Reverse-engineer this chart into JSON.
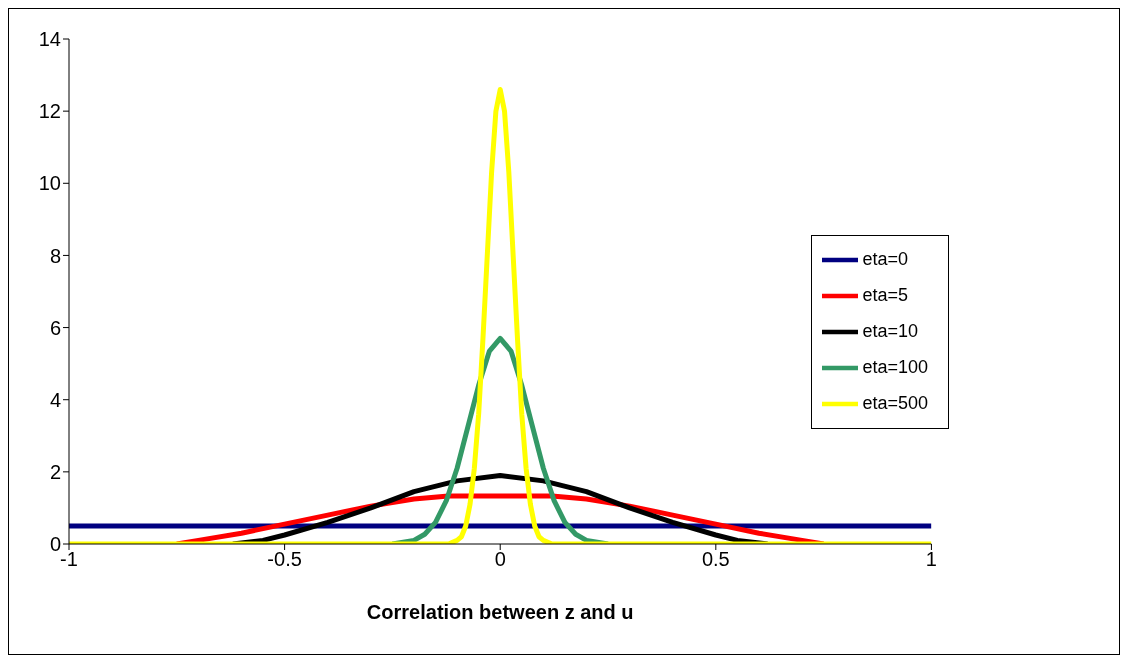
{
  "chart_data": {
    "type": "line",
    "xlabel": "Correlation between z and u",
    "xlim": [
      -1,
      1
    ],
    "xticks": [
      -1,
      -0.5,
      0,
      0.5,
      1
    ],
    "ylim": [
      0,
      14
    ],
    "yticks": [
      0,
      2,
      4,
      6,
      8,
      10,
      12,
      14
    ],
    "grid": false,
    "legend": "right",
    "marker": "none",
    "line_style": "solid",
    "series": [
      {
        "name": "eta=0",
        "color": "#000080",
        "x": [
          -1,
          1
        ],
        "values": [
          0.5,
          0.5
        ]
      },
      {
        "name": "eta=5",
        "color": "#ff0000",
        "x": [
          -0.75,
          -0.7,
          -0.6,
          -0.5,
          -0.4,
          -0.3,
          -0.2,
          -0.12,
          0,
          0.12,
          0.2,
          0.3,
          0.4,
          0.5,
          0.6,
          0.7,
          0.75
        ],
        "values": [
          0,
          0.1,
          0.3,
          0.55,
          0.8,
          1.05,
          1.25,
          1.33,
          1.33,
          1.33,
          1.25,
          1.05,
          0.8,
          0.55,
          0.3,
          0.1,
          0
        ]
      },
      {
        "name": "eta=10",
        "color": "#000000",
        "x": [
          -0.62,
          -0.55,
          -0.5,
          -0.4,
          -0.3,
          -0.2,
          -0.1,
          0,
          0.1,
          0.2,
          0.3,
          0.4,
          0.5,
          0.55,
          0.62
        ],
        "values": [
          0,
          0.1,
          0.25,
          0.6,
          1.0,
          1.45,
          1.75,
          1.9,
          1.75,
          1.45,
          1.0,
          0.6,
          0.25,
          0.1,
          0
        ]
      },
      {
        "name": "eta=100",
        "color": "#339966",
        "x": [
          -0.25,
          -0.2,
          -0.175,
          -0.15,
          -0.125,
          -0.1,
          -0.075,
          -0.05,
          -0.025,
          0,
          0.025,
          0.05,
          0.075,
          0.1,
          0.125,
          0.15,
          0.175,
          0.2,
          0.25
        ],
        "values": [
          0,
          0.1,
          0.27,
          0.6,
          1.2,
          2.1,
          3.25,
          4.4,
          5.35,
          5.7,
          5.35,
          4.4,
          3.25,
          2.1,
          1.2,
          0.6,
          0.27,
          0.1,
          0
        ]
      },
      {
        "name": "eta=500",
        "color": "#ffff00",
        "x": [
          -1,
          -0.12,
          -0.1,
          -0.09,
          -0.08,
          -0.07,
          -0.06,
          -0.05,
          -0.04,
          -0.03,
          -0.02,
          -0.01,
          0,
          0.01,
          0.02,
          0.03,
          0.04,
          0.05,
          0.06,
          0.07,
          0.08,
          0.09,
          0.1,
          0.12,
          1
        ],
        "values": [
          0,
          0,
          0.1,
          0.2,
          0.5,
          1.1,
          2.1,
          3.6,
          5.7,
          8.0,
          10.3,
          12.0,
          12.6,
          12.0,
          10.3,
          8.0,
          5.7,
          3.6,
          2.1,
          1.1,
          0.5,
          0.2,
          0.1,
          0,
          0
        ]
      }
    ]
  }
}
